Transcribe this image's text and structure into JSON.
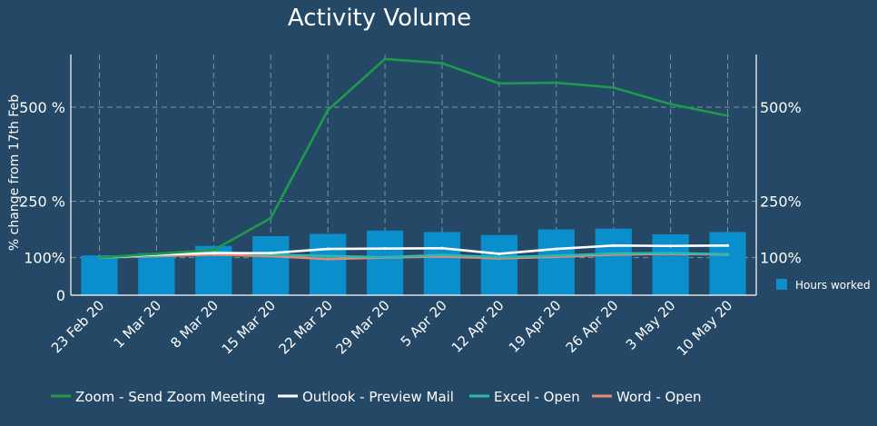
{
  "chart_data": {
    "type": "bar+line",
    "title": "Activity Volume",
    "ylabel": "% change from 17th Feb",
    "categories": [
      "23 Feb 20",
      "1 Mar 20",
      "8 Mar 20",
      "15 Mar 20",
      "22 Mar 20",
      "29 Mar 20",
      "5 Apr 20",
      "12 Apr 20",
      "19 Apr 20",
      "26 Apr 20",
      "3 May 20",
      "10 May 20"
    ],
    "ylim": [
      0,
      640
    ],
    "left_ticks": [
      {
        "value": 0,
        "label": "0"
      },
      {
        "value": 100,
        "label": "100%"
      },
      {
        "value": 250,
        "label": "250 %"
      },
      {
        "value": 500,
        "label": "500 %"
      }
    ],
    "right_ticks": [
      {
        "value": 100,
        "label": "100%"
      },
      {
        "value": 250,
        "label": "250%"
      },
      {
        "value": 500,
        "label": "500%"
      }
    ],
    "grid": true,
    "bar_series": {
      "name": "Hours worked",
      "color": "#0a8fcc",
      "values": [
        106,
        112,
        131,
        157,
        163,
        172,
        168,
        160,
        175,
        177,
        162,
        168
      ]
    },
    "series": [
      {
        "name": "Zoom - Send Zoom Meeting",
        "color": "#1e9a4c",
        "values": [
          100,
          110,
          120,
          205,
          492,
          628,
          617,
          563,
          565,
          552,
          508,
          477
        ]
      },
      {
        "name": "Outlook - Preview Mail",
        "color": "#ffffff",
        "values": [
          100,
          108,
          112,
          112,
          123,
          124,
          125,
          110,
          123,
          132,
          131,
          132
        ]
      },
      {
        "name": "Excel - Open",
        "color": "#2fb7b0",
        "values": [
          100,
          106,
          115,
          108,
          104,
          101,
          107,
          101,
          105,
          111,
          112,
          109
        ]
      },
      {
        "name": "Word - Open",
        "color": "#e78a75",
        "values": [
          100,
          104,
          108,
          104,
          96,
          100,
          103,
          98,
          102,
          108,
          110,
          108
        ]
      }
    ],
    "legend_position": "bottom"
  }
}
